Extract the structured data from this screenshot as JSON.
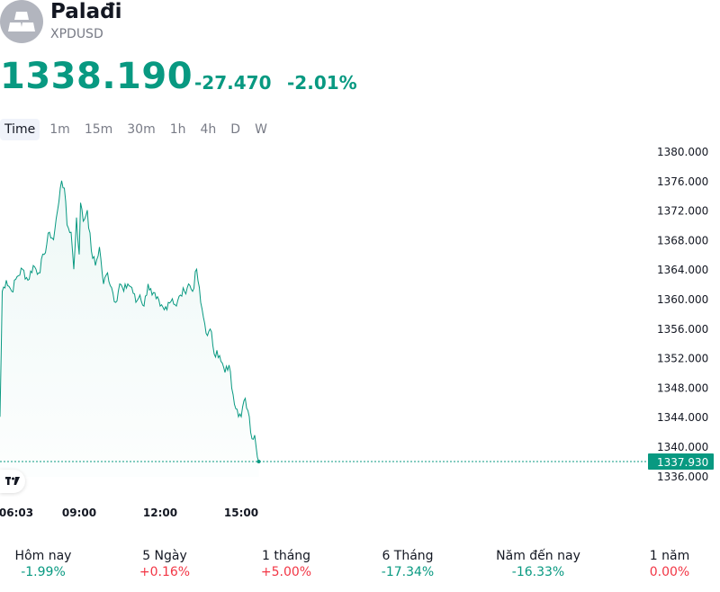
{
  "header": {
    "name": "Palađi",
    "symbol": "XPDUSD",
    "price": "1338.190",
    "change": "-27.470",
    "change_percent": "-2.01%",
    "logo_icon": "metal-bars-icon"
  },
  "colors": {
    "up": "#089981",
    "down": "#f23645",
    "line": "#089981",
    "price_tag": "#089981"
  },
  "tabs": [
    "Time",
    "1m",
    "15m",
    "30m",
    "1h",
    "4h",
    "D",
    "W"
  ],
  "active_tab": "Time",
  "chart_data": {
    "type": "area",
    "y_ticks": [
      "1380.000",
      "1376.000",
      "1372.000",
      "1368.000",
      "1364.000",
      "1360.000",
      "1356.000",
      "1352.000",
      "1348.000",
      "1344.000",
      "1340.000",
      "1336.000"
    ],
    "ylim": [
      1334.4,
      1381.6
    ],
    "x_ticks": [
      "06:03",
      "09:00",
      "12:00",
      "15:00"
    ],
    "last_price_label": "1337.930",
    "last_price": 1337.93,
    "x_hours": [
      6.05,
      6.15,
      6.3,
      6.5,
      6.7,
      6.9,
      7.1,
      7.3,
      7.5,
      7.7,
      7.9,
      8.05,
      8.2,
      8.3,
      8.35,
      8.45,
      8.55,
      8.7,
      8.8,
      8.9,
      9.0,
      9.05,
      9.15,
      9.3,
      9.45,
      9.6,
      9.75,
      9.9,
      10.05,
      10.2,
      10.35,
      10.5,
      10.65,
      10.8,
      10.95,
      11.1,
      11.25,
      11.4,
      11.55,
      11.7,
      11.85,
      12.0,
      12.15,
      12.3,
      12.45,
      12.6,
      12.75,
      12.9,
      13.05,
      13.2,
      13.35,
      13.5,
      13.6,
      13.75,
      13.9,
      14.0,
      14.1,
      14.25,
      14.4,
      14.55,
      14.7,
      14.85,
      15.0,
      15.15,
      15.3,
      15.4,
      15.5,
      15.6,
      15.65
    ],
    "values": [
      1344.0,
      1361.0,
      1362.5,
      1361.0,
      1363.0,
      1364.0,
      1362.5,
      1364.5,
      1363.5,
      1366.0,
      1369.0,
      1368.0,
      1372.0,
      1375.0,
      1376.0,
      1375.0,
      1370.0,
      1369.0,
      1364.0,
      1371.0,
      1366.0,
      1373.0,
      1370.5,
      1372.0,
      1366.5,
      1364.5,
      1367.0,
      1362.0,
      1363.5,
      1361.5,
      1359.5,
      1362.0,
      1361.0,
      1362.0,
      1361.5,
      1359.5,
      1360.5,
      1359.0,
      1362.0,
      1360.5,
      1360.0,
      1359.0,
      1358.5,
      1359.5,
      1360.0,
      1359.0,
      1360.5,
      1361.0,
      1362.0,
      1361.0,
      1364.0,
      1359.5,
      1357.5,
      1355.0,
      1355.5,
      1352.5,
      1353.0,
      1351.5,
      1350.0,
      1351.0,
      1347.0,
      1345.0,
      1344.0,
      1346.5,
      1344.0,
      1341.0,
      1341.5,
      1338.5,
      1337.93
    ]
  },
  "performance": [
    {
      "label": "Hôm nay",
      "value": "-1.99%",
      "direction": "down"
    },
    {
      "label": "5 Ngày",
      "value": "+0.16%",
      "direction": "up"
    },
    {
      "label": "1 tháng",
      "value": "+5.00%",
      "direction": "up"
    },
    {
      "label": "6 Tháng",
      "value": "-17.34%",
      "direction": "down"
    },
    {
      "label": "Năm đến nay",
      "value": "-16.33%",
      "direction": "down"
    },
    {
      "label": "1 năm",
      "value": "0.00%",
      "direction": "flat"
    }
  ]
}
